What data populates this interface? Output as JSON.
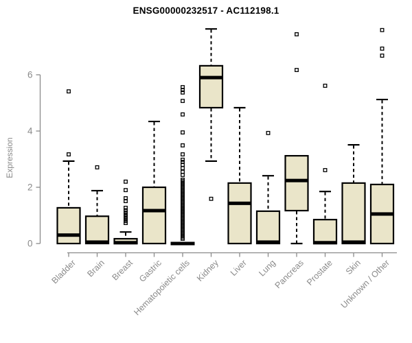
{
  "chart_data": {
    "type": "box",
    "title": "ENSG00000232517 - AC112198.1",
    "ylabel": "Expression",
    "xlabel": "",
    "yticks": [
      0,
      2,
      4,
      6
    ],
    "ylim": [
      0,
      7.8
    ],
    "grid": false,
    "legend": "none",
    "categories": [
      "Bladder",
      "Brain",
      "Breast",
      "Gastric",
      "Hematopoietic cells",
      "Kidney",
      "Liver",
      "Lung",
      "Pancreas",
      "Prostate",
      "Skin",
      "Unknown / Other"
    ],
    "boxes": [
      {
        "name": "Bladder",
        "whisker_low": 0,
        "q1": 0,
        "median": 0.3,
        "q3": 1.27,
        "whisker_high": 2.93,
        "outliers": [
          5.41,
          3.17
        ]
      },
      {
        "name": "Brain",
        "whisker_low": 0,
        "q1": 0,
        "median": 0.05,
        "q3": 0.97,
        "whisker_high": 1.88,
        "outliers": [
          2.71
        ]
      },
      {
        "name": "Breast",
        "whisker_low": 0,
        "q1": 0,
        "median": 0.03,
        "q3": 0.17,
        "whisker_high": 0.41,
        "outliers": [
          2.2,
          1.9,
          1.61,
          1.51,
          1.27,
          1.18,
          1.1,
          1.02,
          0.95,
          0.88,
          0.8,
          0.73
        ]
      },
      {
        "name": "Gastric",
        "whisker_low": 0,
        "q1": 0,
        "median": 1.17,
        "q3": 2.0,
        "whisker_high": 4.34,
        "outliers": []
      },
      {
        "name": "Hematopoietic cells",
        "whisker_low": 0,
        "q1": 0,
        "median": 0.0,
        "q3": 0.0,
        "whisker_high": 0,
        "outliers": [
          5.56,
          5.46,
          5.37,
          5.07,
          4.59,
          3.95,
          3.49,
          3.17,
          2.98,
          2.9,
          2.8,
          2.68,
          2.55,
          2.44,
          2.27,
          2.22,
          2.17,
          2.12,
          2.07,
          2.02,
          1.97,
          1.92,
          1.87,
          1.82,
          1.77,
          1.72,
          1.67,
          1.62,
          1.57,
          1.52,
          1.47,
          1.42,
          1.37,
          1.32,
          1.27,
          1.22,
          1.17,
          1.12,
          1.07,
          1.02,
          0.97,
          0.92,
          0.87,
          0.82,
          0.77,
          0.72,
          0.67,
          0.62,
          0.57,
          0.52,
          0.47,
          0.42,
          0.37,
          0.32,
          0.27,
          0.22,
          0.17
        ]
      },
      {
        "name": "Kidney",
        "whisker_low": 2.93,
        "q1": 4.83,
        "median": 5.9,
        "q3": 6.32,
        "whisker_high": 7.63,
        "outliers": [
          1.59
        ]
      },
      {
        "name": "Liver",
        "whisker_low": 0,
        "q1": 0,
        "median": 1.43,
        "q3": 2.15,
        "whisker_high": 4.83,
        "outliers": []
      },
      {
        "name": "Lung",
        "whisker_low": 0,
        "q1": 0,
        "median": 0.05,
        "q3": 1.15,
        "whisker_high": 2.41,
        "outliers": [
          3.93
        ]
      },
      {
        "name": "Pancreas",
        "whisker_low": 0,
        "q1": 1.17,
        "median": 2.24,
        "q3": 3.12,
        "whisker_high": 3.12,
        "outliers": [
          7.44,
          6.17
        ]
      },
      {
        "name": "Prostate",
        "whisker_low": 0,
        "q1": 0,
        "median": 0.03,
        "q3": 0.85,
        "whisker_high": 1.85,
        "outliers": [
          5.61,
          2.61
        ]
      },
      {
        "name": "Skin",
        "whisker_low": 0,
        "q1": 0,
        "median": 0.05,
        "q3": 2.15,
        "whisker_high": 3.51,
        "outliers": []
      },
      {
        "name": "Unknown / Other",
        "whisker_low": 0,
        "q1": 0,
        "median": 1.05,
        "q3": 2.1,
        "whisker_high": 5.12,
        "outliers": [
          7.59,
          6.93,
          6.68
        ]
      }
    ],
    "colors": {
      "box_fill": "#eae5c9",
      "box_border": "#000000",
      "median": "#000000",
      "whisker": "#000000",
      "outlier": "#000000",
      "axis": "#8a8a8a",
      "tick_label": "#8a8a8a",
      "title": "#000000"
    }
  }
}
